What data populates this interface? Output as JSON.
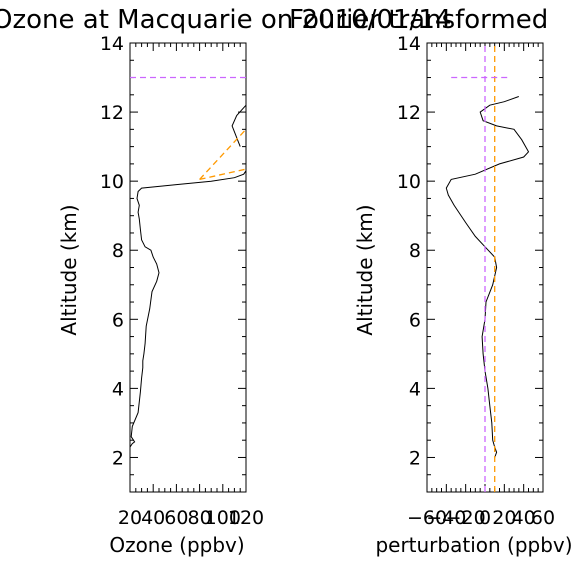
{
  "titles": {
    "left": "Ozone at Macquarie on 2010/01/14",
    "right": "Fourier transformed"
  },
  "colors": {
    "profile": "#000000",
    "tropopause": "#cc66ff",
    "alt_marker": "#ff9900"
  },
  "chart_data": [
    {
      "type": "line",
      "title": "Ozone at Macquarie on 2010/01/14",
      "xlabel": "Ozone (ppbv)",
      "ylabel": "Altitude (km)",
      "xlim": [
        20,
        120
      ],
      "ylim": [
        1,
        14
      ],
      "xticks": [
        "20",
        "40",
        "60",
        "80",
        "100",
        "120"
      ],
      "yticks": [
        "2",
        "4",
        "6",
        "8",
        "10",
        "12",
        "14"
      ],
      "grid": false,
      "series": [
        {
          "points": [
            [
              20,
              2.3
            ],
            [
              22,
              2.4
            ],
            [
              24,
              2.45
            ],
            [
              21,
              2.6
            ],
            [
              22,
              2.9
            ],
            [
              27,
              3.3
            ],
            [
              29,
              3.9
            ],
            [
              30,
              4.3
            ],
            [
              31,
              4.6
            ],
            [
              31,
              4.8
            ],
            [
              32,
              5.0
            ],
            [
              33,
              5.3
            ],
            [
              34,
              5.8
            ],
            [
              37,
              6.3
            ],
            [
              39,
              6.8
            ],
            [
              43,
              7.1
            ],
            [
              45,
              7.35
            ],
            [
              43,
              7.6
            ],
            [
              40,
              7.8
            ],
            [
              38,
              8.0
            ],
            [
              33,
              8.1
            ],
            [
              30,
              8.3
            ],
            [
              29,
              8.6
            ],
            [
              28,
              8.9
            ],
            [
              27,
              9.1
            ],
            [
              28,
              9.3
            ],
            [
              26,
              9.5
            ],
            [
              27,
              9.7
            ],
            [
              30,
              9.8
            ],
            [
              60,
              9.9
            ],
            [
              90,
              10.0
            ],
            [
              110,
              10.1
            ],
            [
              118,
              10.2
            ],
            [
              120,
              10.3
            ]
          ]
        },
        {
          "points": [
            [
              115,
              11.0
            ],
            [
              108,
              11.6
            ],
            [
              112,
              11.9
            ],
            [
              120,
              12.2
            ]
          ]
        },
        {
          "name": "",
          "dashed": true,
          "color": "#cc66ff",
          "points": [
            [
              20,
              13.0
            ],
            [
              120,
              13.0
            ]
          ]
        },
        {
          "name": "",
          "dashed": true,
          "color": "#ff9900",
          "points": [
            [
              80,
              10.05
            ],
            [
              120,
              11.5
            ]
          ]
        },
        {
          "name": "",
          "dashed": true,
          "color": "#ff9900",
          "points": [
            [
              80,
              10.05
            ],
            [
              120,
              10.35
            ]
          ]
        }
      ]
    },
    {
      "type": "line",
      "title": "Fourier transformed",
      "xlabel": "perturbation (ppbv)",
      "ylabel": "Altitude (km)",
      "xlim": [
        -60,
        60
      ],
      "ylim": [
        1,
        14
      ],
      "xticks": [
        "-60",
        "-40",
        "-20",
        "0",
        "20",
        "40",
        "60"
      ],
      "yticks": [
        "2",
        "4",
        "6",
        "8",
        "10",
        "12",
        "14"
      ],
      "grid": false,
      "series": [
        {
          "points": [
            [
              10,
              2.0
            ],
            [
              12,
              2.15
            ],
            [
              10,
              2.3
            ],
            [
              8,
              2.5
            ],
            [
              7,
              3.0
            ],
            [
              5,
              3.5
            ],
            [
              3,
              4.0
            ],
            [
              0,
              4.5
            ],
            [
              -2,
              5.0
            ],
            [
              -3,
              5.5
            ],
            [
              0,
              6.0
            ],
            [
              1,
              6.5
            ],
            [
              8,
              7.0
            ],
            [
              12,
              7.5
            ],
            [
              10,
              7.8
            ],
            [
              0,
              8.1
            ],
            [
              -10,
              8.4
            ],
            [
              -20,
              8.8
            ],
            [
              -32,
              9.3
            ],
            [
              -38,
              9.6
            ],
            [
              -40,
              9.8
            ],
            [
              -35,
              10.05
            ],
            [
              -10,
              10.2
            ],
            [
              15,
              10.5
            ],
            [
              40,
              10.7
            ],
            [
              45,
              10.85
            ],
            [
              38,
              11.2
            ],
            [
              30,
              11.5
            ],
            [
              12,
              11.6
            ],
            [
              -2,
              11.75
            ],
            [
              -5,
              12.0
            ],
            [
              5,
              12.2
            ],
            [
              20,
              12.3
            ],
            [
              35,
              12.45
            ]
          ]
        },
        {
          "name": "",
          "dashed": true,
          "color": "#cc66ff",
          "points": [
            [
              0,
              1
            ],
            [
              0,
              14
            ]
          ]
        },
        {
          "name": "",
          "dashed": true,
          "color": "#ff9900",
          "points": [
            [
              10,
              1
            ],
            [
              10,
              14
            ]
          ]
        },
        {
          "name": "",
          "dashed": true,
          "color": "#cc66ff",
          "points": [
            [
              -35,
              13.0
            ],
            [
              25,
              13.0
            ]
          ]
        }
      ]
    }
  ]
}
